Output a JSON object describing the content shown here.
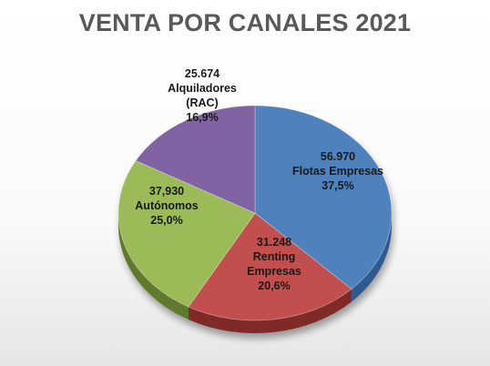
{
  "chart_data": {
    "type": "pie",
    "title": "VENTA POR CANALES 2021",
    "slices": [
      {
        "label_lines": [
          "56.970",
          "Flotas Empresas",
          "37,5%"
        ],
        "value": 56970,
        "percent": 37.5,
        "color": "#4f81bd",
        "side_color": "#2f5a8f"
      },
      {
        "label_lines": [
          "31.248",
          "Renting",
          "Empresas",
          "20,6%"
        ],
        "value": 31248,
        "percent": 20.6,
        "color": "#c0504d",
        "side_color": "#7f2a28"
      },
      {
        "label_lines": [
          "37,930",
          "Autónomos",
          "25,0%"
        ],
        "value": 37930,
        "percent": 25.0,
        "color": "#9bbb59",
        "side_color": "#5f7a2e"
      },
      {
        "label_lines": [
          "25.674",
          "Alquiladores",
          "(RAC)",
          "16,9%"
        ],
        "value": 25674,
        "percent": 16.9,
        "color": "#8064a2",
        "side_color": "#4f3b6c"
      }
    ]
  }
}
